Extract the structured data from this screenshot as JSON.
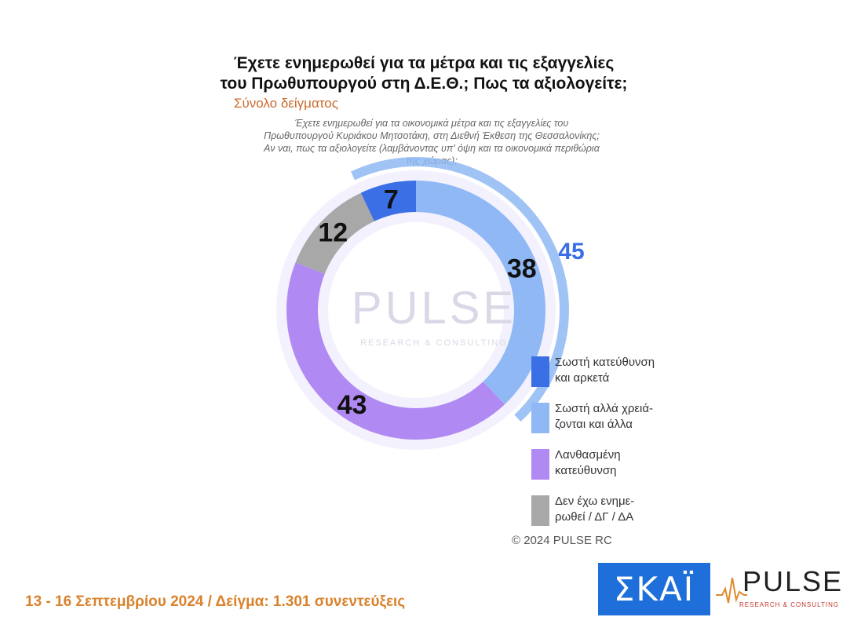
{
  "title_line1": "Έχετε ενημερωθεί για τα μέτρα και τις εξαγγελίες",
  "title_line2": "του Πρωθυπουργού στη Δ.Ε.Θ.; Πως τα αξιολογείτε;",
  "subtitle": "Σύνολο δείγματος",
  "question": "Έχετε ενημερωθεί για τα οικονομικά μέτρα και τις εξαγγελίες του Πρωθυπουργού Κυριάκου Μητσοτάκη, στη Διεθνή Έκθεση της Θεσσαλονίκης; Αν ναι, πως τα αξιολογείτε (λαμβάνοντας υπ' όψη και τα οικονομικά περιθώρια της χώρας);",
  "watermark": "PULSE",
  "watermark_sub": "RESEARCH & CONSULTING",
  "chart_data": {
    "type": "pie",
    "variant": "donut",
    "segments": [
      {
        "label": "Σωστή κατεύθυνση\nκαι αρκετά",
        "value": 7,
        "color": "#3b6fe6",
        "text_color": "#111111"
      },
      {
        "label": "Σωστή αλλά χρειά-\nζονται και άλλα",
        "value": 38,
        "color": "#8fb8f5",
        "text_color": "#111111"
      },
      {
        "label": "Λανθασμένη\nκατεύθυνση",
        "value": 43,
        "color": "#b089f2",
        "text_color": "#111111"
      },
      {
        "label": "Δεν έχω ενημε-\nρωθεί / ΔΓ / ΔΑ",
        "value": 12,
        "color": "#a8a8a8",
        "text_color": "#111111"
      }
    ],
    "outer_ring": {
      "value": 45,
      "color": "#8fb8f5",
      "label_color": "#3b6fe6"
    }
  },
  "copyright": "© 2024 PULSE RC",
  "footer": "13 - 16 Σεπτεμβρίου 2024  /  Δείγμα:  1.301 συνεντεύξεις",
  "logos": {
    "skai": "ΣΚΑΪ",
    "pulse": "PULSE",
    "pulse_sub": "RESEARCH & CONSULTING"
  }
}
